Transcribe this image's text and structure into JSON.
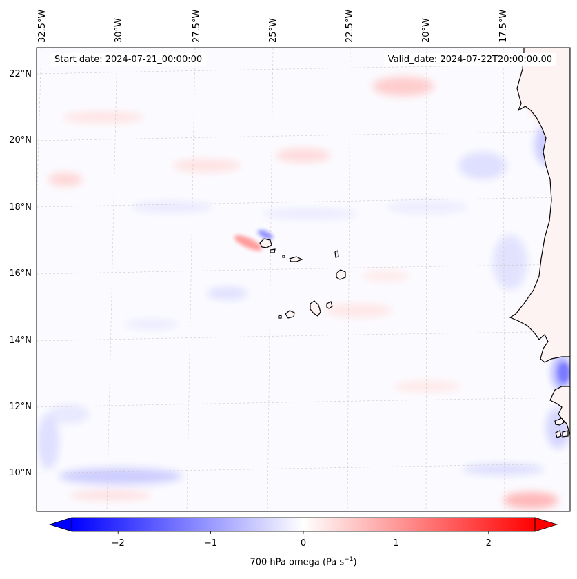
{
  "map": {
    "start_date_text": "Start date: 2024-07-21_00:00:00",
    "valid_date_text": "Valid_date: 2024-07-22T20:00:00.00",
    "lon_labels": [
      "32.5°W",
      "30°W",
      "27.5°W",
      "25°W",
      "22.5°W",
      "20°W",
      "17.5°W"
    ],
    "lat_labels": [
      "22°N",
      "20°N",
      "18°N",
      "16°N",
      "14°N",
      "12°N",
      "10°N"
    ],
    "field": "700 hPa omega",
    "colormap": "bwr",
    "colors": {
      "negative": "#0000ff",
      "zero": "#ffffff",
      "positive": "#ff0000",
      "coast": "#000000"
    }
  },
  "colorbar": {
    "label": "700 hPa omega (Pa s",
    "label_unit_exponent": "−1",
    "label_close": ")",
    "range": [
      -2.5,
      2.5
    ],
    "ticks": [
      "−2",
      "−1",
      "0",
      "1",
      "2"
    ],
    "tick_values": [
      -2,
      -1,
      0,
      1,
      2
    ]
  }
}
